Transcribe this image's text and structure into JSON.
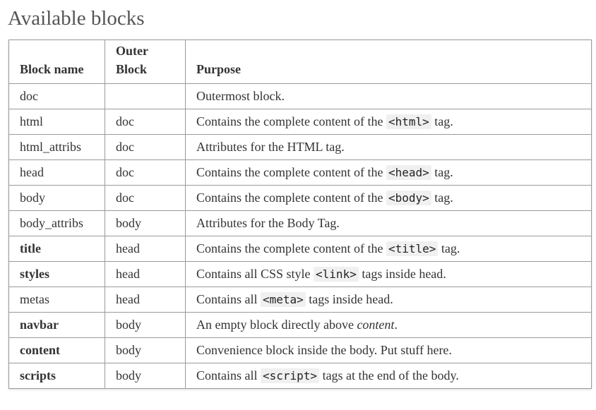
{
  "page": {
    "title": "Available blocks"
  },
  "table": {
    "headers": {
      "block_name": "Block name",
      "outer_block_line1": "Outer",
      "outer_block_line2": "Block",
      "purpose": "Purpose"
    },
    "rows": [
      {
        "name": "doc",
        "bold": false,
        "outer": "",
        "purpose_pre": "Outermost block.",
        "code": "",
        "purpose_post": ""
      },
      {
        "name": "html",
        "bold": false,
        "outer": "doc",
        "purpose_pre": "Contains the complete content of the ",
        "code": "<html>",
        "purpose_post": " tag."
      },
      {
        "name": "html_attribs",
        "bold": false,
        "outer": "doc",
        "purpose_pre": "Attributes for the HTML tag.",
        "code": "",
        "purpose_post": ""
      },
      {
        "name": "head",
        "bold": false,
        "outer": "doc",
        "purpose_pre": "Contains the complete content of the ",
        "code": "<head>",
        "purpose_post": " tag."
      },
      {
        "name": "body",
        "bold": false,
        "outer": "doc",
        "purpose_pre": "Contains the complete content of the ",
        "code": "<body>",
        "purpose_post": " tag."
      },
      {
        "name": "body_attribs",
        "bold": false,
        "outer": "body",
        "purpose_pre": "Attributes for the Body Tag.",
        "code": "",
        "purpose_post": ""
      },
      {
        "name": "title",
        "bold": true,
        "outer": "head",
        "purpose_pre": "Contains the complete content of the ",
        "code": "<title>",
        "purpose_post": " tag."
      },
      {
        "name": "styles",
        "bold": true,
        "outer": "head",
        "purpose_pre": "Contains all CSS style ",
        "code": "<link>",
        "purpose_post": " tags inside head."
      },
      {
        "name": "metas",
        "bold": false,
        "outer": "head",
        "purpose_pre": "Contains all ",
        "code": "<meta>",
        "purpose_post": " tags inside head."
      },
      {
        "name": "navbar",
        "bold": true,
        "outer": "body",
        "purpose_pre": "An empty block directly above ",
        "emph": "content",
        "code": "",
        "purpose_post": "."
      },
      {
        "name": "content",
        "bold": true,
        "outer": "body",
        "purpose_pre": "Convenience block inside the body. Put stuff here.",
        "code": "",
        "purpose_post": ""
      },
      {
        "name": "scripts",
        "bold": true,
        "outer": "body",
        "purpose_pre": "Contains all ",
        "code": "<script>",
        "purpose_post": " tags at the end of the body."
      }
    ]
  }
}
